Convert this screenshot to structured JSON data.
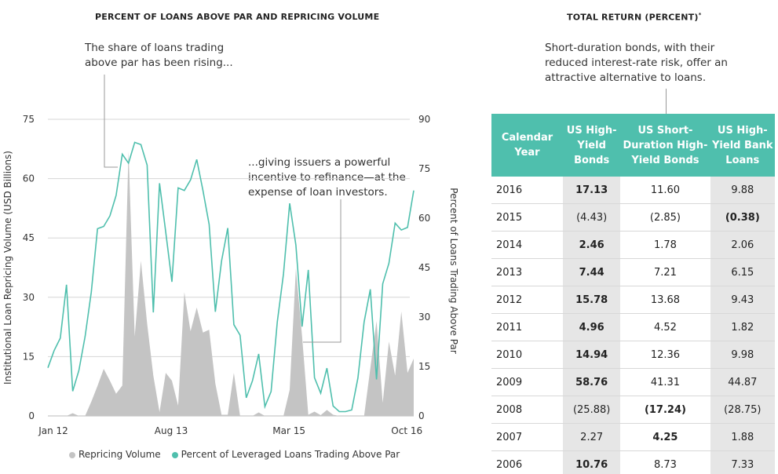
{
  "left_panel": {
    "title": "PERCENT OF LOANS ABOVE PAR AND REPRICING VOLUME",
    "annotation_1": [
      "The share of loans trading",
      "above par has been rising..."
    ],
    "annotation_2": [
      "...giving issuers a powerful",
      "incentive to refinance—at the",
      "expense of loan investors."
    ]
  },
  "chart_data": {
    "type": "area+line",
    "title": "PERCENT OF LOANS ABOVE PAR AND REPRICING VOLUME",
    "xlabel": "",
    "x_tick_labels": [
      "Jan 12",
      "Aug 13",
      "Mar 15",
      "Oct 16"
    ],
    "x_range": [
      "Jan 12",
      "Dec 16"
    ],
    "frequency": "monthly",
    "ylabel_left": "Institutional Loan Repricing Volume (USD Billions)",
    "ylim_left": [
      0,
      75
    ],
    "yticks_left": [
      0,
      15,
      30,
      45,
      60,
      75
    ],
    "ylabel_right": "Percent of Loans Trading Above Par",
    "ylim_right": [
      0,
      90
    ],
    "yticks_right": [
      0,
      15,
      30,
      45,
      60,
      75,
      90
    ],
    "grid": true,
    "legend_placement": "bottom",
    "series": [
      {
        "name": "Repricing Volume",
        "type": "area",
        "axis": "left",
        "color": "#c4c4c4",
        "values": [
          0,
          0,
          0,
          0,
          0.7,
          0,
          0,
          3.6,
          7.6,
          11.9,
          8.9,
          5.6,
          7.7,
          66.9,
          20.1,
          39.2,
          23.4,
          10.2,
          1,
          10.9,
          8.9,
          2.6,
          31.3,
          21.4,
          27.4,
          21.1,
          21.8,
          8.2,
          0.3,
          0.3,
          10.9,
          0,
          0,
          0,
          0.9,
          0,
          0,
          0,
          0,
          6.6,
          37.2,
          20.1,
          0.3,
          1.1,
          0.2,
          1.5,
          0.3,
          0,
          0,
          0,
          0,
          0,
          12,
          24,
          3.3,
          18.8,
          10.2,
          26.4,
          10.9,
          14.5
        ]
      },
      {
        "name": "Percent of Leveraged Loans Trading Above Par",
        "type": "line",
        "axis": "right",
        "color": "#4fbfad",
        "values": [
          14.6,
          19.8,
          23.6,
          39.8,
          7.5,
          13.8,
          24.1,
          37.6,
          56.8,
          57.5,
          60.7,
          66.9,
          79.4,
          76.7,
          83,
          82.3,
          76.1,
          31.4,
          70.6,
          55.8,
          40.7,
          69.2,
          68.4,
          71.6,
          77.8,
          68.4,
          58.1,
          31.6,
          47,
          57,
          27.7,
          24.5,
          5.5,
          10.7,
          18.8,
          2.8,
          7.4,
          28.5,
          43.1,
          64.5,
          51.8,
          27.1,
          44.3,
          11.6,
          6.9,
          14.5,
          3,
          1.3,
          1.3,
          1.8,
          11.5,
          28.5,
          38.4,
          11.1,
          40.1,
          46.3,
          58.5,
          56.4,
          57.2,
          68.4
        ]
      }
    ]
  },
  "right_panel": {
    "title": "TOTAL RETURN (PERCENT)",
    "title_mark": "*",
    "annotation": [
      "Short-duration bonds, with their",
      "reduced interest-rate risk, offer an",
      "attractive alternative to loans."
    ],
    "table": {
      "header_color": "#4fbfad",
      "columns": [
        "Calendar Year",
        "US High-Yield Bonds",
        "US Short-Duration High-Yield Bonds",
        "US High-Yield Bank Loans"
      ],
      "rows": [
        {
          "year": "2016",
          "values": [
            "17.13",
            "11.60",
            "9.88"
          ],
          "bold": [
            true,
            false,
            false
          ]
        },
        {
          "year": "2015",
          "values": [
            "(4.43)",
            "(2.85)",
            "(0.38)"
          ],
          "bold": [
            false,
            false,
            true
          ]
        },
        {
          "year": "2014",
          "values": [
            "2.46",
            "1.78",
            "2.06"
          ],
          "bold": [
            true,
            false,
            false
          ]
        },
        {
          "year": "2013",
          "values": [
            "7.44",
            "7.21",
            "6.15"
          ],
          "bold": [
            true,
            false,
            false
          ]
        },
        {
          "year": "2012",
          "values": [
            "15.78",
            "13.68",
            "9.43"
          ],
          "bold": [
            true,
            false,
            false
          ]
        },
        {
          "year": "2011",
          "values": [
            "4.96",
            "4.52",
            "1.82"
          ],
          "bold": [
            true,
            false,
            false
          ]
        },
        {
          "year": "2010",
          "values": [
            "14.94",
            "12.36",
            "9.98"
          ],
          "bold": [
            true,
            false,
            false
          ]
        },
        {
          "year": "2009",
          "values": [
            "58.76",
            "41.31",
            "44.87"
          ],
          "bold": [
            true,
            false,
            false
          ]
        },
        {
          "year": "2008",
          "values": [
            "(25.88)",
            "(17.24)",
            "(28.75)"
          ],
          "bold": [
            false,
            true,
            false
          ]
        },
        {
          "year": "2007",
          "values": [
            "2.27",
            "4.25",
            "1.88"
          ],
          "bold": [
            false,
            true,
            false
          ]
        },
        {
          "year": "2006",
          "values": [
            "10.76",
            "8.73",
            "7.33"
          ],
          "bold": [
            true,
            false,
            false
          ]
        }
      ]
    }
  }
}
